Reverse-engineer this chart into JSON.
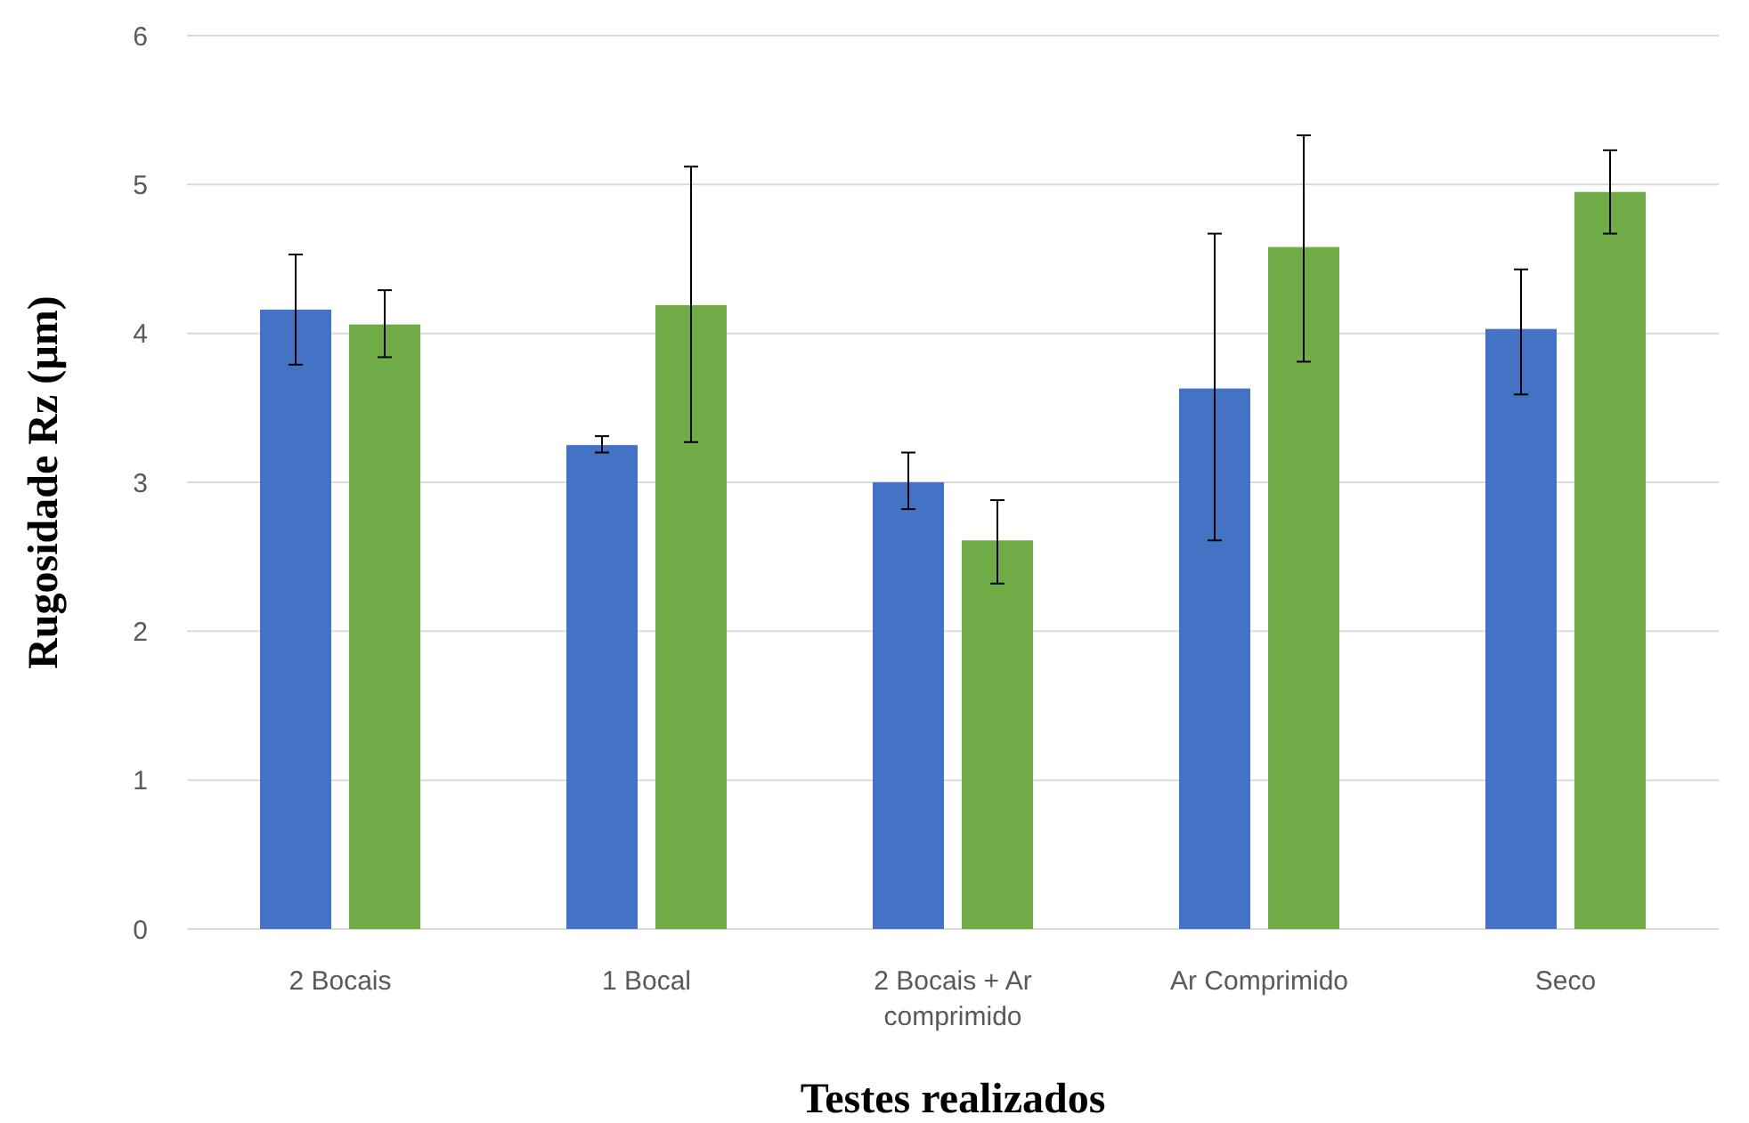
{
  "chart_data": {
    "type": "bar",
    "xlabel": "Testes realizados",
    "ylabel": "Rugosidade Rz (µm)",
    "categories": [
      "2 Bocais",
      "1  Bocal",
      "2 Bocais + Ar comprimido",
      "Ar Comprimido",
      "Seco"
    ],
    "series": [
      {
        "color": "#4472c4",
        "values": [
          4.16,
          3.25,
          3.0,
          3.63,
          4.03
        ],
        "errors": [
          [
            3.79,
            4.53
          ],
          [
            3.2,
            3.31
          ],
          [
            2.82,
            3.2
          ],
          [
            2.61,
            4.67
          ],
          [
            3.59,
            4.43
          ]
        ]
      },
      {
        "color": "#70ad47",
        "values": [
          4.06,
          4.19,
          2.61,
          4.58,
          4.95
        ],
        "errors": [
          [
            3.84,
            4.29
          ],
          [
            3.27,
            5.12
          ],
          [
            2.32,
            2.88
          ],
          [
            3.81,
            5.33
          ],
          [
            4.67,
            5.23
          ]
        ]
      }
    ],
    "ylim": [
      0,
      6
    ],
    "yticks": [
      0,
      1,
      2,
      3,
      4,
      5,
      6
    ],
    "grid": "y"
  }
}
